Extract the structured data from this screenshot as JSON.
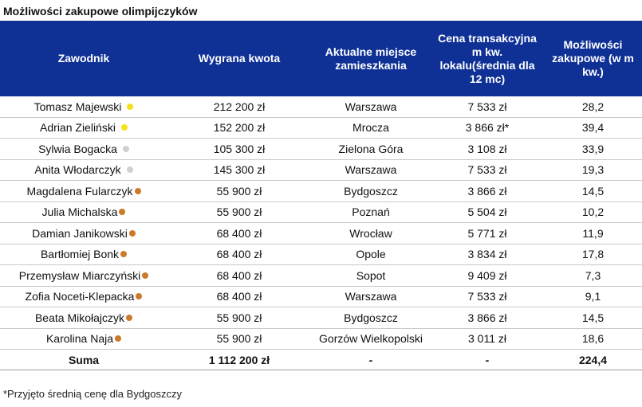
{
  "title": "Możliwości zakupowe olimpijczyków",
  "headers": [
    "Zawodnik",
    "Wygrana kwota",
    "Aktualne miejsce zamieszkania",
    "Cena transakcyjna m kw. lokalu(średnia dla 12 mc)",
    "Możliwości zakupowe (w m kw.)"
  ],
  "rows": [
    {
      "name": "Tomasz Majewski",
      "medal": "gold",
      "amount": "212 200 zł",
      "city": "Warszawa",
      "price": "7 533 zł",
      "sqm": "28,2"
    },
    {
      "name": "Adrian Zieliński",
      "medal": "gold",
      "amount": "152 200 zł",
      "city": "Mrocza",
      "price": "3 866 zł*",
      "sqm": "39,4"
    },
    {
      "name": "Sylwia Bogacka",
      "medal": "silver",
      "amount": "105 300 zł",
      "city": "Zielona Góra",
      "price": "3 108 zł",
      "sqm": "33,9"
    },
    {
      "name": "Anita Włodarczyk",
      "medal": "silver",
      "amount": "145 300 zł",
      "city": "Warszawa",
      "price": "7 533 zł",
      "sqm": "19,3"
    },
    {
      "name": "Magdalena Fularczyk",
      "medal": "bronze",
      "amount": "55 900 zł",
      "city": "Bydgoszcz",
      "price": "3 866 zł",
      "sqm": "14,5"
    },
    {
      "name": "Julia Michalska",
      "medal": "bronze",
      "amount": "55 900 zł",
      "city": "Poznań",
      "price": "5 504 zł",
      "sqm": "10,2"
    },
    {
      "name": "Damian Janikowski",
      "medal": "bronze",
      "amount": "68 400 zł",
      "city": "Wrocław",
      "price": "5 771 zł",
      "sqm": "11,9"
    },
    {
      "name": "Bartłomiej Bonk",
      "medal": "bronze",
      "amount": "68 400 zł",
      "city": "Opole",
      "price": "3 834 zł",
      "sqm": "17,8"
    },
    {
      "name": "Przemysław Miarczyński",
      "medal": "bronze",
      "amount": "68 400 zł",
      "city": "Sopot",
      "price": "9 409 zł",
      "sqm": "7,3"
    },
    {
      "name": "Zofia Noceti-Klepacka",
      "medal": "bronze",
      "amount": "68 400 zł",
      "city": "Warszawa",
      "price": "7 533 zł",
      "sqm": "9,1"
    },
    {
      "name": "Beata Mikołajczyk",
      "medal": "bronze",
      "amount": "55 900 zł",
      "city": "Bydgoszcz",
      "price": "3 866 zł",
      "sqm": "14,5"
    },
    {
      "name": "Karolina Naja",
      "medal": "bronze",
      "amount": "55 900 zł",
      "city": "Gorzów Wielkopolski",
      "price": "3 011 zł",
      "sqm": "18,6"
    }
  ],
  "sum": {
    "label": "Suma",
    "amount": "1 112 200 zł",
    "city": "-",
    "price": "-",
    "sqm": "224,4"
  },
  "footnote": "*Przyjęto średnią cenę dla Bydgoszczy",
  "colors": {
    "header_bg": "#0f3196",
    "gold": "#f2e21a",
    "silver": "#d0d0d0",
    "bronze": "#cc7a29"
  }
}
